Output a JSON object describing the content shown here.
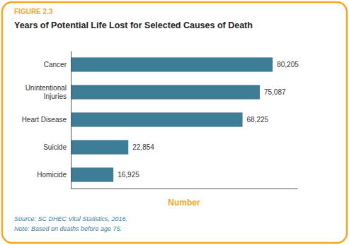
{
  "chart_data": {
    "type": "bar",
    "orientation": "horizontal",
    "title": "Years of Potential Life Lost for Selected Causes of Death",
    "annotations": [
      "FIGURE 2.3",
      "Source: SC DHEC Vital Statistics, 2016.",
      "Note: Based on deaths before age 75."
    ],
    "xlabel": "Number",
    "categories": [
      "Homicide",
      "Suicide",
      "Heart Disease",
      "Unintentional\nInjuries",
      "Cancer"
    ],
    "values": [
      16925,
      22854,
      68225,
      75087,
      80205
    ],
    "value_labels": [
      "16,925",
      "22,854",
      "68,225",
      "75,087",
      "80,205"
    ],
    "data_labels": true,
    "color": "#3d7d96",
    "xlim": [
      0,
      90000
    ],
    "xticks": [],
    "tick_labels": "y",
    "grid": false
  }
}
